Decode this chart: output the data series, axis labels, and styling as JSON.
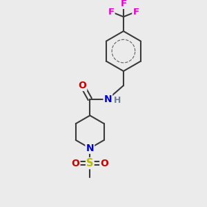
{
  "bg_color": "#ebebeb",
  "bond_color": "#3a3a3a",
  "bond_width": 1.5,
  "atom_colors": {
    "F": "#e800cc",
    "O": "#cc0000",
    "N": "#0000cc",
    "S": "#bbbb00",
    "H": "#708090"
  },
  "figsize": [
    3.0,
    3.0
  ],
  "dpi": 100,
  "xlim": [
    0,
    10
  ],
  "ylim": [
    0,
    10
  ]
}
